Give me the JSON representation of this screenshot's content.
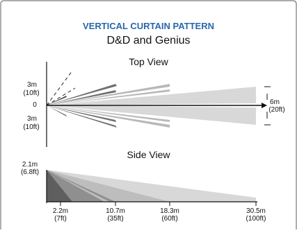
{
  "title": "VERTICAL CURTAIN PATTERN",
  "subtitle": "D&D and Genius",
  "top_view": {
    "title": "Top View",
    "left_labels": {
      "upper_distance": "3m",
      "upper_distance_ft": "(10ft)",
      "center": "0",
      "lower_distance": "3m",
      "lower_distance_ft": "(10ft)"
    },
    "right_label": {
      "distance": "6m",
      "distance_ft": "(20ft)"
    }
  },
  "side_view": {
    "title": "Side View",
    "height_label": "2.1m",
    "height_label_ft": "(6.8ft)",
    "ranges": [
      {
        "m": "2.2m",
        "ft": "(7ft)"
      },
      {
        "m": "10.7m",
        "ft": "(35ft)"
      },
      {
        "m": "18.3m",
        "ft": "(60ft)"
      },
      {
        "m": "30.5m",
        "ft": "(100ft)"
      }
    ]
  },
  "colors": {
    "title_blue": "#2a67a8",
    "frame": "#7a7a7a",
    "axis": "#111111",
    "zone_dark": "#5f5f5f",
    "zone_mid": "#8f8f8f",
    "zone_light": "#bdbdbd",
    "zone_lightest": "#d8d8d8"
  },
  "icons": {
    "arrow": "arrow-right-icon"
  }
}
